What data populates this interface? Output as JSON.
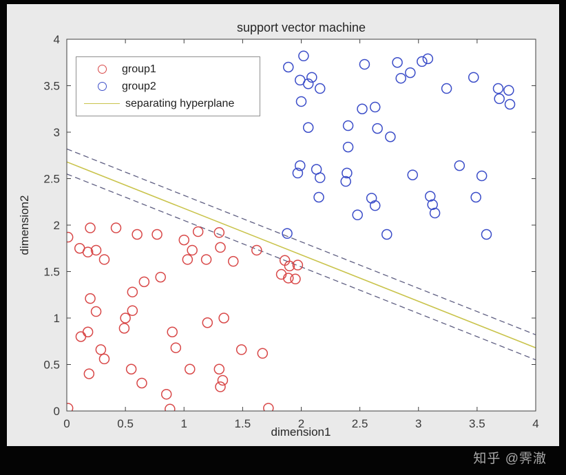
{
  "watermark": "知乎 @霁澈",
  "colors": {
    "frame": "#040404",
    "figure_background": "#eaeaea",
    "plot_background": "#ffffff",
    "axis": "#3f3f3f",
    "group1": "#d84747",
    "group2": "#3a4cc8",
    "hyperplane": "#c9c34b",
    "margin_dashed": "#5f5f82"
  },
  "chart_data": {
    "type": "scatter",
    "title": "support vector machine",
    "xlabel": "dimension1",
    "ylabel": "dimension2",
    "xlim": [
      0,
      4
    ],
    "ylim": [
      0,
      4
    ],
    "xticks": [
      0,
      0.5,
      1,
      1.5,
      2,
      2.5,
      3,
      3.5,
      4
    ],
    "yticks": [
      0,
      0.5,
      1,
      1.5,
      2,
      2.5,
      3,
      3.5,
      4
    ],
    "grid": false,
    "legend_position": "top-left",
    "series": [
      {
        "name": "group1",
        "kind": "scatter",
        "marker": "open-circle",
        "color": "#d84747",
        "points": [
          [
            0.01,
            1.87
          ],
          [
            0.11,
            1.75
          ],
          [
            0.18,
            1.71
          ],
          [
            0.25,
            1.73
          ],
          [
            0.32,
            1.63
          ],
          [
            0.2,
            1.97
          ],
          [
            0.42,
            1.97
          ],
          [
            0.6,
            1.9
          ],
          [
            0.77,
            1.9
          ],
          [
            1.0,
            1.84
          ],
          [
            1.12,
            1.93
          ],
          [
            1.3,
            1.92
          ],
          [
            1.07,
            1.73
          ],
          [
            1.03,
            1.63
          ],
          [
            1.19,
            1.63
          ],
          [
            1.31,
            1.76
          ],
          [
            1.42,
            1.61
          ],
          [
            1.62,
            1.73
          ],
          [
            1.86,
            1.62
          ],
          [
            1.9,
            1.56
          ],
          [
            1.97,
            1.57
          ],
          [
            1.83,
            1.47
          ],
          [
            1.89,
            1.43
          ],
          [
            1.95,
            1.42
          ],
          [
            0.66,
            1.39
          ],
          [
            0.8,
            1.44
          ],
          [
            0.56,
            1.28
          ],
          [
            0.2,
            1.21
          ],
          [
            0.25,
            1.07
          ],
          [
            0.5,
            1.0
          ],
          [
            0.56,
            1.08
          ],
          [
            0.49,
            0.89
          ],
          [
            0.12,
            0.8
          ],
          [
            0.18,
            0.85
          ],
          [
            0.29,
            0.66
          ],
          [
            0.32,
            0.56
          ],
          [
            0.55,
            0.45
          ],
          [
            0.93,
            0.68
          ],
          [
            0.9,
            0.85
          ],
          [
            1.2,
            0.95
          ],
          [
            1.34,
            1.0
          ],
          [
            1.49,
            0.66
          ],
          [
            1.67,
            0.62
          ],
          [
            1.3,
            0.45
          ],
          [
            1.33,
            0.33
          ],
          [
            1.31,
            0.26
          ],
          [
            0.64,
            0.3
          ],
          [
            0.85,
            0.18
          ],
          [
            0.19,
            0.4
          ],
          [
            0.01,
            0.03
          ],
          [
            0.88,
            0.02
          ],
          [
            1.72,
            0.03
          ],
          [
            1.05,
            0.45
          ]
        ]
      },
      {
        "name": "group2",
        "kind": "scatter",
        "marker": "open-circle",
        "color": "#3a4cc8",
        "points": [
          [
            1.89,
            3.7
          ],
          [
            2.02,
            3.82
          ],
          [
            1.99,
            3.56
          ],
          [
            2.09,
            3.59
          ],
          [
            2.06,
            3.52
          ],
          [
            2.16,
            3.47
          ],
          [
            2.0,
            3.33
          ],
          [
            2.54,
            3.73
          ],
          [
            2.82,
            3.75
          ],
          [
            2.85,
            3.58
          ],
          [
            2.93,
            3.64
          ],
          [
            3.03,
            3.76
          ],
          [
            3.08,
            3.79
          ],
          [
            3.24,
            3.47
          ],
          [
            3.47,
            3.59
          ],
          [
            3.68,
            3.47
          ],
          [
            3.77,
            3.45
          ],
          [
            3.69,
            3.36
          ],
          [
            3.78,
            3.3
          ],
          [
            2.52,
            3.25
          ],
          [
            2.63,
            3.27
          ],
          [
            2.06,
            3.05
          ],
          [
            2.4,
            3.07
          ],
          [
            2.65,
            3.04
          ],
          [
            2.76,
            2.95
          ],
          [
            2.4,
            2.84
          ],
          [
            1.99,
            2.64
          ],
          [
            1.97,
            2.56
          ],
          [
            2.13,
            2.6
          ],
          [
            2.16,
            2.51
          ],
          [
            2.39,
            2.56
          ],
          [
            2.38,
            2.47
          ],
          [
            2.95,
            2.54
          ],
          [
            3.35,
            2.64
          ],
          [
            3.54,
            2.53
          ],
          [
            3.49,
            2.3
          ],
          [
            2.15,
            2.3
          ],
          [
            2.6,
            2.29
          ],
          [
            2.63,
            2.21
          ],
          [
            3.1,
            2.31
          ],
          [
            3.12,
            2.22
          ],
          [
            3.14,
            2.13
          ],
          [
            2.48,
            2.11
          ],
          [
            2.73,
            1.9
          ],
          [
            1.88,
            1.91
          ],
          [
            3.58,
            1.9
          ]
        ]
      },
      {
        "name": "separating hyperplane",
        "kind": "line",
        "style": "solid",
        "color": "#c9c34b",
        "points": [
          [
            0,
            2.68
          ],
          [
            4,
            0.68
          ]
        ]
      }
    ],
    "margin_lines": [
      {
        "style": "dashed",
        "color": "#5f5f82",
        "points": [
          [
            0,
            2.82
          ],
          [
            4,
            0.82
          ]
        ]
      },
      {
        "style": "dashed",
        "color": "#5f5f82",
        "points": [
          [
            0,
            2.55
          ],
          [
            4,
            0.55
          ]
        ]
      }
    ]
  }
}
